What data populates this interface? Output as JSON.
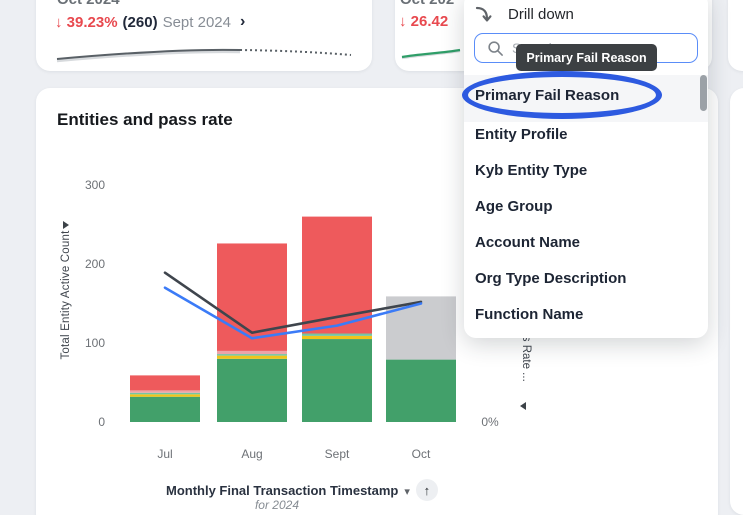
{
  "kpi1": {
    "period": "Oct 2024",
    "delta": "↓ 39.23%",
    "value": "(260)",
    "compare": "Sept 2024",
    "chevron": "›"
  },
  "kpi2": {
    "period": "Oct 202",
    "delta": "↓ 26.42"
  },
  "drilldown": {
    "title": "Drill down",
    "search_placeholder": "Search",
    "items": [
      "Primary Fail Reason",
      "Entity Profile",
      "Kyb Entity Type",
      "Age Group",
      "Account Name",
      "Org Type Description",
      "Function Name"
    ]
  },
  "tooltip": {
    "text": "Primary Fail Reason"
  },
  "icons": {
    "caret_down": "▾",
    "sort_up": "↑"
  },
  "chart": {
    "title": "Entities and pass rate"
  },
  "colors": {
    "annotation_blue": "#2d5ae0",
    "tooltip_bg": "#3c4043",
    "search_border": "#5a8df8",
    "kpi_red": "#e8494f"
  },
  "chart_data": {
    "type": "bar",
    "title": "Entities and pass rate",
    "categories": [
      "Jul",
      "Aug",
      "Sept",
      "Oct"
    ],
    "bar_series": [
      {
        "name": "green-segment",
        "color": "#42a06a",
        "values": [
          32,
          80,
          105,
          79
        ]
      },
      {
        "name": "gold-segment",
        "color": "#f0c41b",
        "values": [
          3,
          4,
          4,
          0
        ]
      },
      {
        "name": "teal-segment",
        "color": "#74c6a2",
        "values": [
          2,
          2,
          3,
          0
        ]
      },
      {
        "name": "pink-segment",
        "color": "#eda4a8",
        "values": [
          3,
          4,
          0,
          0
        ]
      },
      {
        "name": "red-segment",
        "color": "#ee5a5c",
        "values": [
          19,
          136,
          148,
          0
        ]
      },
      {
        "name": "gray-segment",
        "color": "#cbcccf",
        "values": [
          0,
          0,
          0,
          80
        ]
      }
    ],
    "line_series": [
      {
        "name": "dark-line",
        "color": "#3f454d",
        "values": [
          189,
          113,
          133,
          152
        ]
      },
      {
        "name": "blue-line",
        "color": "#3b7bf7",
        "values": [
          170,
          106,
          122,
          150
        ]
      }
    ],
    "left_axis": {
      "label": "Total Entity Active Count",
      "ticks": [
        0,
        100,
        200,
        300
      ],
      "ylim": [
        0,
        380
      ]
    },
    "right_axis": {
      "label": "ss Rate ...",
      "tick": "0%"
    },
    "x_axis": {
      "label": "Monthly Final Transaction Timestamp",
      "subtitle": "for 2024"
    },
    "grid": false,
    "legend": "none"
  }
}
